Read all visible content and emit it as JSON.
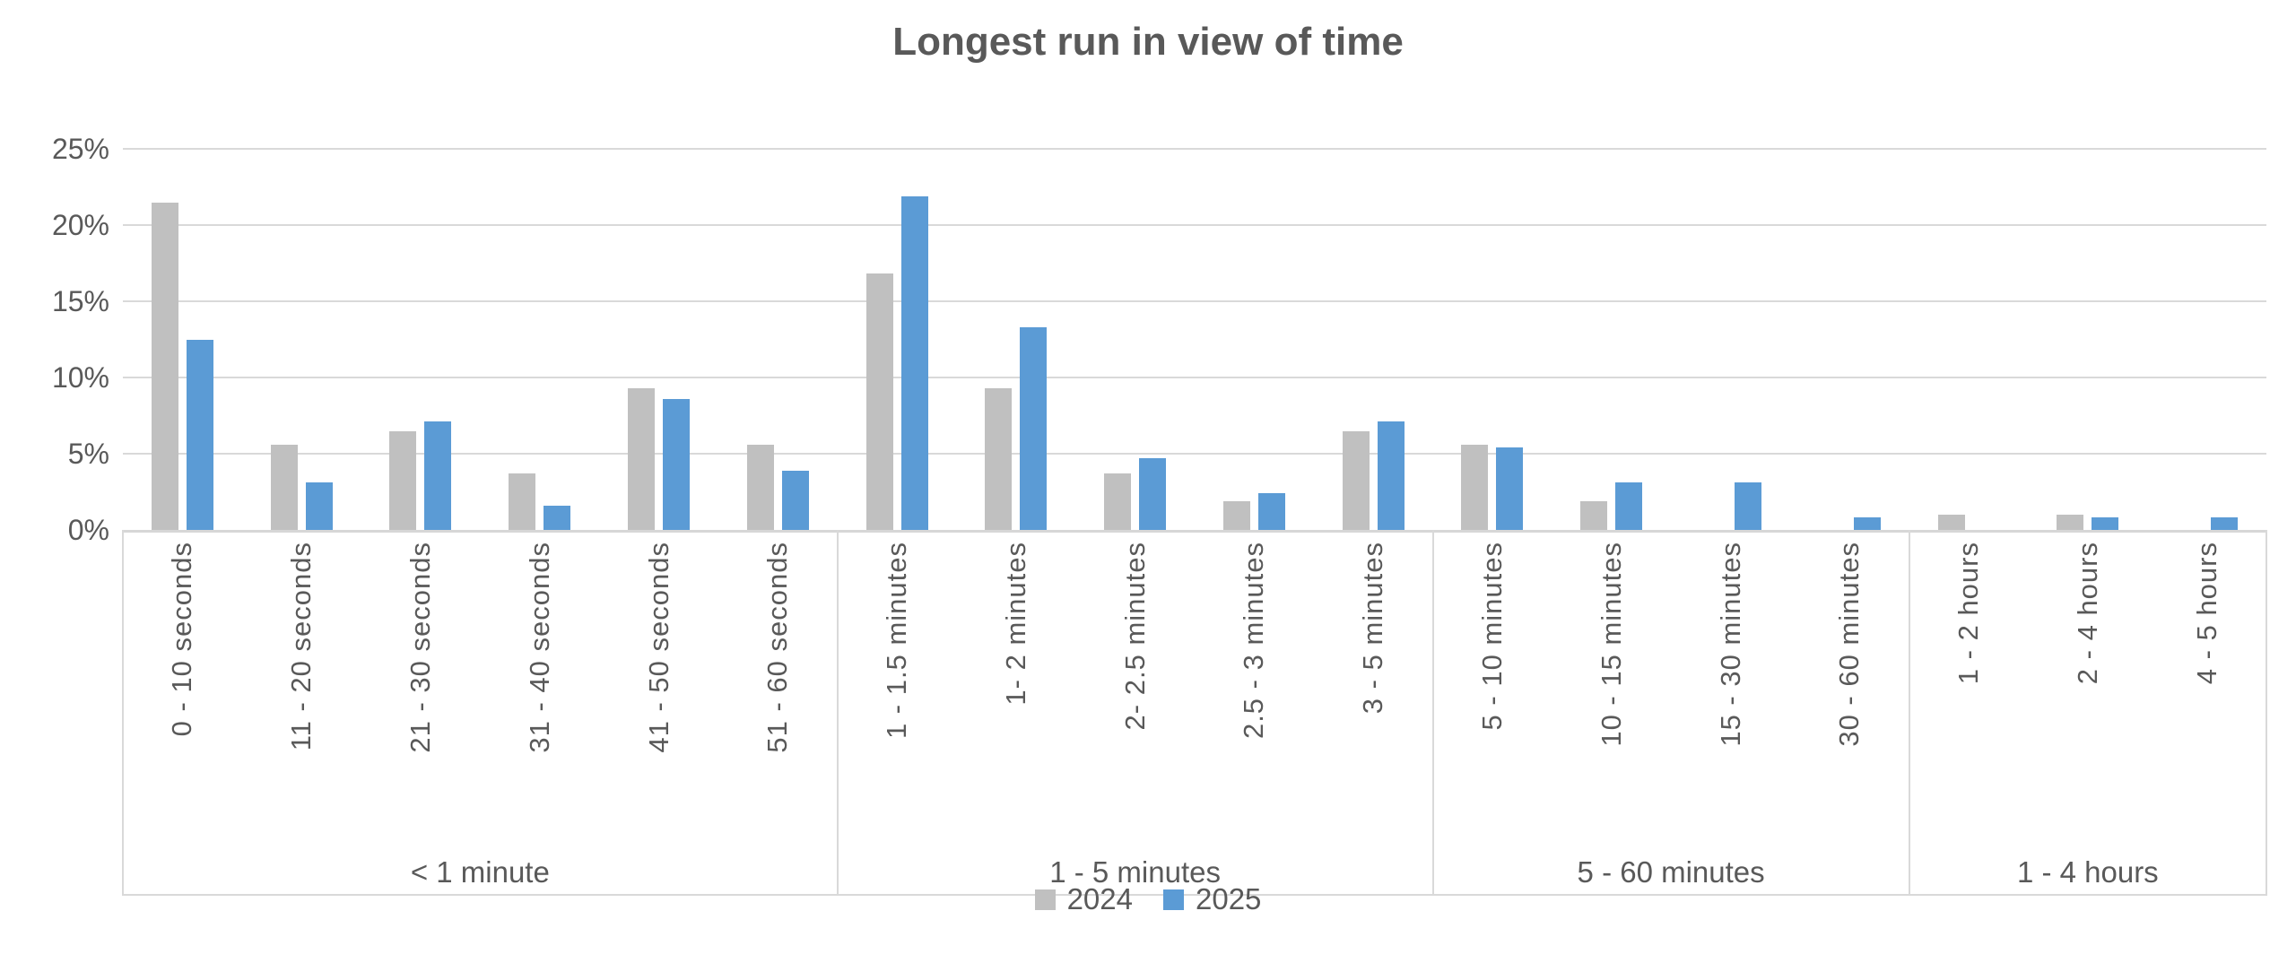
{
  "chart_data": {
    "type": "bar",
    "title": "Longest run in view of time",
    "categories": [
      "0 - 10 seconds",
      "11 - 20 seconds",
      "21 - 30 seconds",
      "31 - 40 seconds",
      "41 - 50 seconds",
      "51 - 60 seconds",
      "1 - 1.5 minutes",
      "1- 2 minutes",
      "2- 2.5 minutes",
      "2.5 - 3 minutes",
      "3 - 5 minutes",
      "5 - 10 minutes",
      "10 - 15 minutes",
      "15 - 30 minutes",
      "30 - 60 minutes",
      "1 - 2 hours",
      "2 - 4 hours",
      "4 - 5 hours"
    ],
    "category_groups": [
      {
        "label": "< 1 minute",
        "span": 6
      },
      {
        "label": "1 - 5 minutes",
        "span": 5
      },
      {
        "label": "5 - 60 minutes",
        "span": 4
      },
      {
        "label": "1 - 4 hours",
        "span": 3
      }
    ],
    "series": [
      {
        "name": "2024",
        "color": "#c0c0c0",
        "values": [
          21.5,
          5.6,
          6.5,
          3.7,
          9.3,
          5.6,
          16.8,
          9.3,
          3.7,
          1.9,
          6.5,
          5.6,
          1.9,
          0,
          0,
          1.0,
          1.0,
          0
        ]
      },
      {
        "name": "2025",
        "color": "#5b9bd5",
        "values": [
          12.5,
          3.1,
          7.1,
          1.6,
          8.6,
          3.9,
          21.9,
          13.3,
          4.7,
          2.4,
          7.1,
          5.4,
          3.1,
          3.1,
          0.8,
          0,
          0.8,
          0.8
        ]
      }
    ],
    "y_axis": {
      "unit": "%",
      "min": 0,
      "max": 25,
      "step": 5,
      "tick_labels": [
        "0%",
        "5%",
        "10%",
        "15%",
        "20%",
        "25%"
      ]
    },
    "grid": true,
    "legend_position": "bottom",
    "colors": {
      "text": "#595959",
      "gridline": "#d9d9d9",
      "axis_line": "#d7d7d7",
      "label_box_line": "#d9d9d9",
      "series_2024": "#c0c0c0",
      "series_2025": "#5b9bd5"
    }
  }
}
